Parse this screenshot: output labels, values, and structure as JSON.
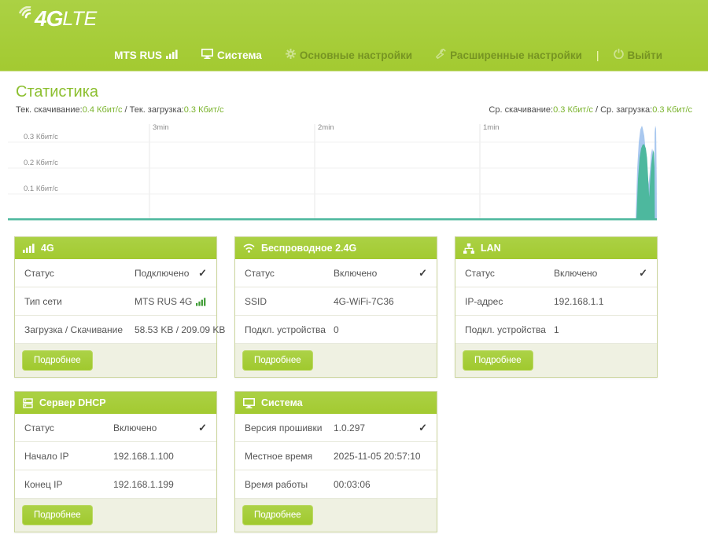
{
  "ui": {
    "check_glyph": "✓"
  },
  "colors": {
    "lime": "#a7cd3a",
    "green_text": "#7ab32c",
    "title_green": "#8cbf2f",
    "chart_teal": "#4db89e",
    "chart_blue": "#a9c8ef"
  },
  "header": {
    "logo": {
      "bold": "4G",
      "light": "LTE"
    },
    "nav": [
      {
        "label": "MTS RUS",
        "icon": "signal-bars-icon",
        "state": "bright"
      },
      {
        "label": "Система",
        "icon": "monitor-icon",
        "state": "bright"
      },
      {
        "label": "Основные настройки",
        "icon": "gear-icon",
        "state": "dim"
      },
      {
        "label": "Расширенные настройки",
        "icon": "wrench-icon",
        "state": "dim"
      },
      {
        "label": "Выйти",
        "icon": "power-icon",
        "state": "dim"
      }
    ],
    "nav_divider": "|"
  },
  "stats": {
    "title": "Статистика",
    "current": {
      "download_label": "Тек. скачивание:",
      "download_value": "0.4 Кбит/с",
      "separator": " / ",
      "upload_label": "Тек. загрузка:",
      "upload_value": "0.3 Кбит/с"
    },
    "average": {
      "download_label": "Ср. скачивание:",
      "download_value": "0.3 Кбит/с",
      "separator": " / ",
      "upload_label": "Ср. загрузка:",
      "upload_value": "0.3 Кбит/с"
    }
  },
  "chart_data": {
    "type": "area",
    "title": "",
    "xlabel": "",
    "ylabel": "Кбит/с",
    "x_ticks": [
      "3min",
      "2min",
      "1min"
    ],
    "y_ticks": [
      "0.3 Кбит/с",
      "0.2 Кбит/с",
      "0.1 Кбит/с"
    ],
    "ylim": [
      0,
      0.4
    ],
    "grid": true,
    "legend_position": "none",
    "series": [
      {
        "name": "Скачивание",
        "color": "#a9c8ef",
        "x_seconds_ago": [
          240,
          20,
          16,
          12,
          8,
          6,
          4,
          2,
          0
        ],
        "values": [
          0,
          0,
          0.3,
          0.38,
          0.22,
          0.35,
          0.15,
          0.38,
          0
        ]
      },
      {
        "name": "Загрузка",
        "color": "#4db89e",
        "x_seconds_ago": [
          240,
          20,
          16,
          12,
          8,
          6,
          4,
          2,
          0
        ],
        "values": [
          0,
          0,
          0.25,
          0.29,
          0.1,
          0.27,
          0.29,
          0.2,
          0
        ]
      }
    ]
  },
  "cards": [
    {
      "id": "4g",
      "icon": "signal-bars-icon",
      "title": "4G",
      "rows": [
        {
          "label": "Статус",
          "value": "Подключено",
          "check": true
        },
        {
          "label": "Тип сети",
          "value": "MTS RUS 4G",
          "value_icon": "green-signal-bars-icon"
        },
        {
          "label": "Загрузка / Скачивание",
          "value": "58.53 KB / 209.09 KB"
        }
      ],
      "button": "Подробнее"
    },
    {
      "id": "wireless",
      "icon": "wifi-icon",
      "title": "Беспроводное 2.4G",
      "rows": [
        {
          "label": "Статус",
          "value": "Включено",
          "check": true
        },
        {
          "label": "SSID",
          "value": "4G-WiFi-7C36"
        },
        {
          "label": "Подкл. устройства",
          "value": "0"
        }
      ],
      "button": "Подробнее"
    },
    {
      "id": "lan",
      "icon": "lan-icon",
      "title": "LAN",
      "rows": [
        {
          "label": "Статус",
          "value": "Включено",
          "check": true
        },
        {
          "label": "IP-адрес",
          "value": "192.168.1.1"
        },
        {
          "label": "Подкл. устройства",
          "value": "1"
        }
      ],
      "button": "Подробнее"
    },
    {
      "id": "dhcp",
      "icon": "server-icon",
      "title": "Сервер DHCP",
      "rows": [
        {
          "label": "Статус",
          "value": "Включено",
          "check": true
        },
        {
          "label": "Начало IP",
          "value": "192.168.1.100"
        },
        {
          "label": "Конец IP",
          "value": "192.168.1.199"
        }
      ],
      "button": "Подробнее"
    },
    {
      "id": "system",
      "icon": "monitor-icon",
      "title": "Система",
      "rows": [
        {
          "label": "Версия прошивки",
          "value": "1.0.297",
          "check": true
        },
        {
          "label": "Местное время",
          "value": "2025-11-05 20:57:10"
        },
        {
          "label": "Время работы",
          "value": "00:03:06"
        }
      ],
      "button": "Подробнее"
    }
  ]
}
